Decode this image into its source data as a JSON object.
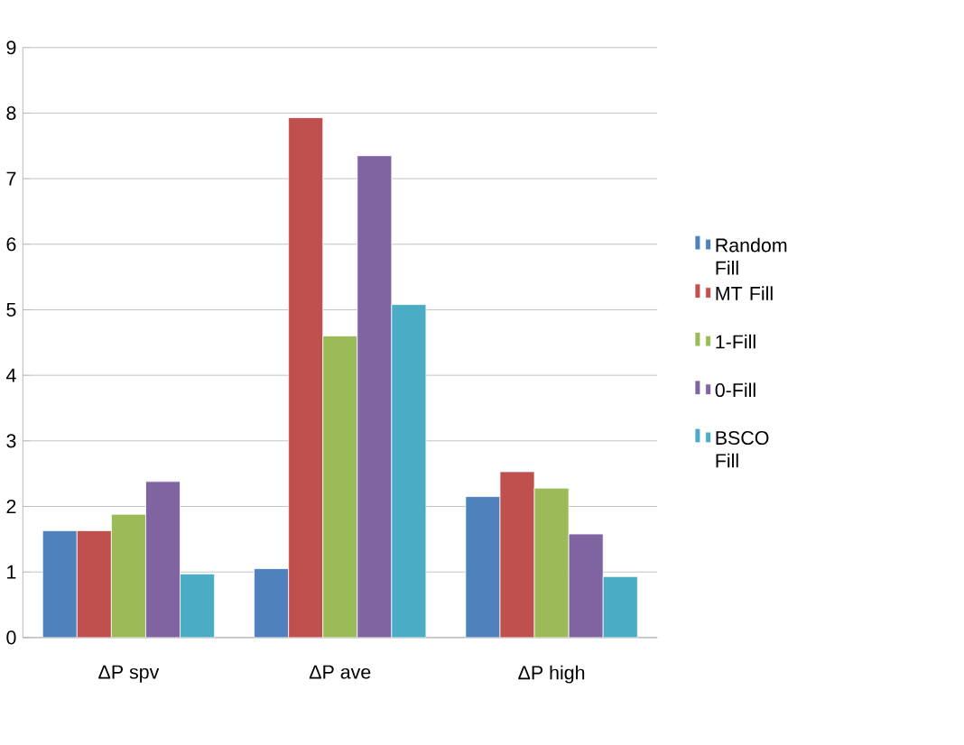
{
  "chart_data": {
    "type": "bar",
    "categories": [
      "ΔP spv",
      "ΔP ave",
      "ΔP high"
    ],
    "series": [
      {
        "name": "Random Fill",
        "color": "#4f81bd",
        "values": [
          1.63,
          1.05,
          2.15
        ]
      },
      {
        "name": "MT Fill",
        "color": "#c0504d",
        "values": [
          1.63,
          7.93,
          2.53
        ]
      },
      {
        "name": "1-Fill",
        "color": "#9bbb59",
        "values": [
          1.88,
          4.6,
          2.28
        ]
      },
      {
        "name": "0-Fill",
        "color": "#8064a2",
        "values": [
          2.38,
          7.35,
          1.58
        ]
      },
      {
        "name": "BSCO Fill",
        "color": "#4bacc6",
        "values": [
          0.97,
          5.08,
          0.93
        ]
      }
    ],
    "ylim": [
      0,
      9
    ],
    "yticks": [
      0,
      1,
      2,
      3,
      4,
      5,
      6,
      7,
      8,
      9
    ],
    "grid": "y",
    "legend": "right"
  }
}
